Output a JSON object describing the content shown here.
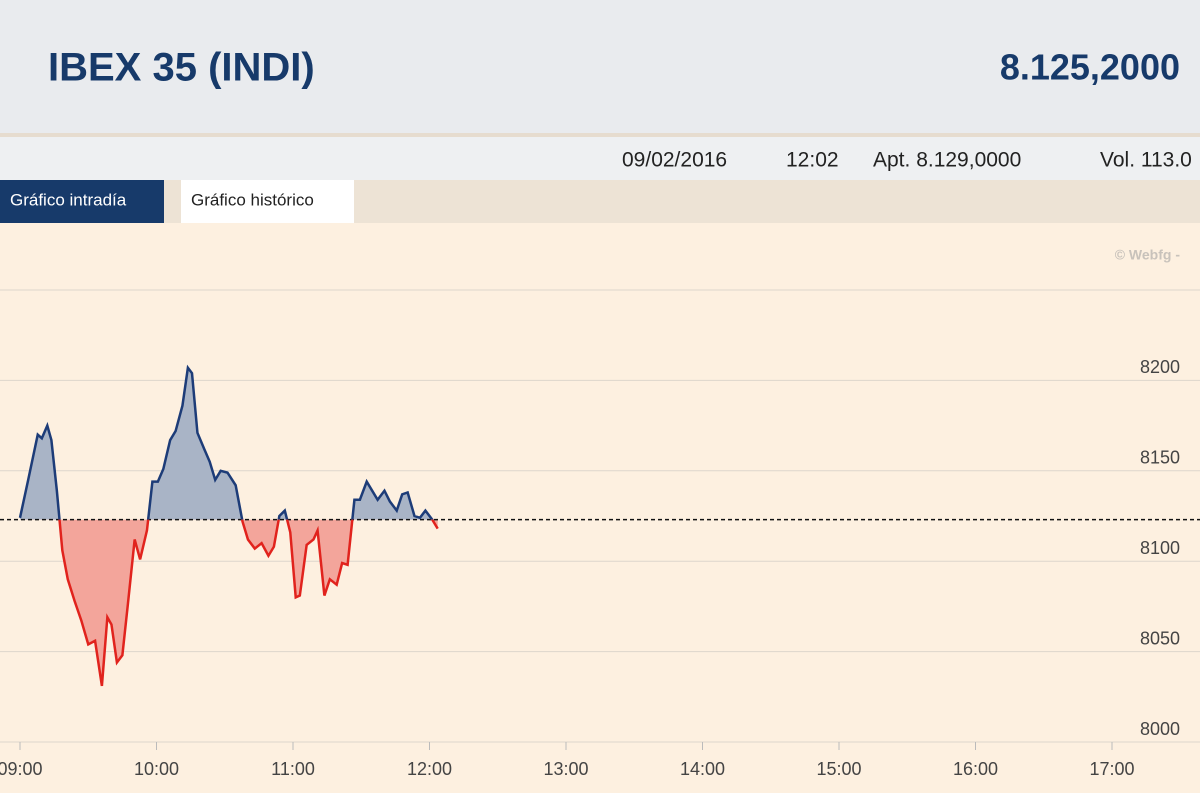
{
  "header": {
    "title": "IBEX 35 (INDI)",
    "value": "8.125,2000"
  },
  "info": {
    "date": "09/02/2016",
    "time": "12:02",
    "open": "Apt. 8.129,0000",
    "volume": "Vol. 113.0"
  },
  "tabs": [
    "Gráfico intradía",
    "Gráfico histórico"
  ],
  "watermark": "© Webfg -",
  "chart_data": {
    "type": "line",
    "x": [
      9.0,
      9.06,
      9.13,
      9.16,
      9.2,
      9.23,
      9.27,
      9.31,
      9.35,
      9.4,
      9.45,
      9.5,
      9.55,
      9.6,
      9.64,
      9.67,
      9.71,
      9.75,
      9.79,
      9.84,
      9.88,
      9.93,
      9.97,
      10.01,
      10.05,
      10.1,
      10.14,
      10.19,
      10.23,
      10.26,
      10.3,
      10.35,
      10.39,
      10.43,
      10.47,
      10.52,
      10.58,
      10.63,
      10.67,
      10.72,
      10.77,
      10.82,
      10.86,
      10.9,
      10.94,
      10.98,
      11.02,
      11.05,
      11.1,
      11.15,
      11.18,
      11.23,
      11.27,
      11.32,
      11.36,
      11.4,
      11.45,
      11.49,
      11.54,
      11.58,
      11.62,
      11.67,
      11.71,
      11.76,
      11.8,
      11.84,
      11.89,
      11.93,
      11.97,
      12.02,
      12.06
    ],
    "values": [
      8124,
      8145,
      8170,
      8168,
      8175,
      8167,
      8139,
      8106,
      8090,
      8078,
      8067,
      8054,
      8056,
      8031,
      8069,
      8065,
      8044,
      8048,
      8076,
      8112,
      8101,
      8117,
      8144,
      8144,
      8151,
      8167,
      8172,
      8186,
      8207,
      8204,
      8171,
      8162,
      8155,
      8145,
      8150,
      8149,
      8142,
      8122,
      8112,
      8107,
      8110,
      8103,
      8108,
      8125,
      8128,
      8116,
      8080,
      8081,
      8109,
      8112,
      8117,
      8081,
      8090,
      8087,
      8099,
      8098,
      8134,
      8134,
      8144,
      8139,
      8134,
      8139,
      8133,
      8128,
      8137,
      8138,
      8125,
      8124,
      8128,
      8123,
      8118
    ],
    "baseline": 8123,
    "up_color": "#1d3c78",
    "down_color": "#e1231d",
    "up_fill": "#a9b4c6",
    "down_fill": "#f3a59b",
    "xlim": [
      9,
      17
    ],
    "xticks": [
      {
        "value": 9,
        "label": "09:00"
      },
      {
        "value": 10,
        "label": "10:00"
      },
      {
        "value": 11,
        "label": "11:00"
      },
      {
        "value": 12,
        "label": "12:00"
      },
      {
        "value": 13,
        "label": "13:00"
      },
      {
        "value": 14,
        "label": "14:00"
      },
      {
        "value": 15,
        "label": "15:00"
      },
      {
        "value": 16,
        "label": "16:00"
      },
      {
        "value": 17,
        "label": "17:00"
      }
    ],
    "ylim": [
      8000,
      8250
    ],
    "yticks": [
      8000,
      8050,
      8100,
      8150,
      8200
    ],
    "grid": true
  }
}
